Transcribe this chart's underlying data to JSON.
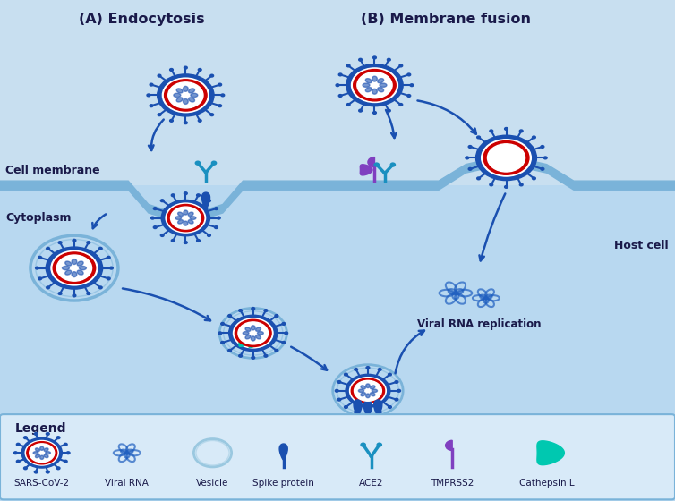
{
  "bg_color": "#c8dff0",
  "cell_membrane_color": "#7ab3d9",
  "cell_interior_color": "#b8d8f0",
  "title_A": "(A) Endocytosis",
  "title_B": "(B) Membrane fusion",
  "cell_membrane_label": "Cell membrane",
  "cytoplasm_label": "Cytoplasm",
  "host_cell_label": "Host cell",
  "viral_rna_label": "Viral RNA replication",
  "legend_title": "Legend",
  "legend_items": [
    "SARS-CoV-2",
    "Viral RNA",
    "Vesicle",
    "Spike protein",
    "ACE2",
    "TMPRSS2",
    "Cathepsin L"
  ],
  "virus_color": "#2060c0",
  "virus_ring_color": "#cc0000",
  "spike_color": "#1a50b0",
  "ace2_color": "#1a90c0",
  "tmprss2_color": "#8040c0",
  "cathepsin_color": "#00c8b0",
  "arrow_color": "#1a50b0",
  "legend_box_color": "#d8eaf8",
  "text_color": "#1a1a4a"
}
